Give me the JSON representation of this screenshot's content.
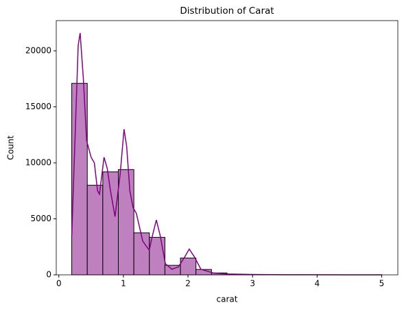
{
  "chart_data": {
    "type": "histogram",
    "title": "Distribution of Carat",
    "x_label": "carat",
    "y_label": "Count",
    "bins": [
      0.2,
      0.4405,
      0.681,
      0.9215,
      1.162,
      1.4025,
      1.643,
      1.8835,
      2.124,
      2.3645,
      2.605,
      2.8455,
      3.086,
      3.3265,
      3.567,
      3.8075,
      4.048,
      4.2885,
      4.529,
      4.7695,
      5.01
    ],
    "counts": [
      17100,
      8000,
      9200,
      9400,
      3750,
      3350,
      850,
      1500,
      480,
      170,
      60,
      20,
      10,
      5,
      3,
      2,
      1,
      0,
      0,
      1
    ],
    "color": "#bf80bf",
    "edgecolor": "#000000",
    "kde": {
      "color": "#800080",
      "x": [
        0.2,
        0.25,
        0.3,
        0.33,
        0.38,
        0.43,
        0.5,
        0.55,
        0.6,
        0.63,
        0.7,
        0.75,
        0.8,
        0.87,
        0.95,
        1.01,
        1.05,
        1.1,
        1.15,
        1.2,
        1.3,
        1.4,
        1.45,
        1.51,
        1.57,
        1.65,
        1.75,
        1.85,
        1.95,
        2.02,
        2.1,
        2.2,
        2.4,
        2.6,
        3.0,
        3.5,
        4.0,
        4.5,
        5.0
      ],
      "values": [
        3500,
        12000,
        20500,
        21600,
        17500,
        12000,
        10500,
        10000,
        7500,
        7200,
        10500,
        9500,
        7500,
        5200,
        9000,
        13000,
        11500,
        7500,
        6000,
        5500,
        3000,
        2200,
        3500,
        4900,
        3500,
        1000,
        500,
        700,
        1600,
        2300,
        1600,
        500,
        150,
        80,
        30,
        10,
        5,
        2,
        0
      ]
    },
    "xlim": [
      -0.04,
      5.25
    ],
    "ylim": [
      0,
      22700
    ],
    "xticks": [
      0,
      1,
      2,
      3,
      4,
      5
    ],
    "yticks": [
      0,
      5000,
      10000,
      15000,
      20000
    ]
  }
}
